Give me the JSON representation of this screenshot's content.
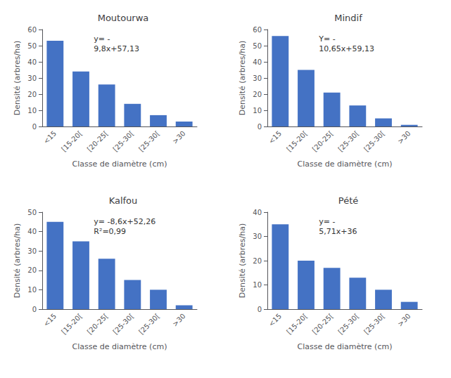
{
  "chart_data": [
    {
      "type": "bar",
      "title": "Moutourwa",
      "categories": [
        "<15",
        "[15-20[",
        "[20-25[",
        "[25-30[",
        "[25-30[",
        ">30"
      ],
      "values": [
        53,
        34,
        26,
        14,
        7,
        3
      ],
      "color": "#4472C4",
      "xlabel": "Classe de diamètre (cm)",
      "ylabel": "Densité (arbres/ha)",
      "ylim": [
        0,
        60
      ],
      "yticks": [
        0,
        10,
        20,
        30,
        40,
        50,
        60
      ],
      "grid": false,
      "annotations": [
        "y= -\n9,8x+57,13"
      ]
    },
    {
      "type": "bar",
      "title": "Mindif",
      "categories": [
        "<15",
        "[15-20[",
        "[20-25[",
        "[25-30[",
        "[25-30[",
        ">30"
      ],
      "values": [
        56,
        35,
        21,
        13,
        5,
        1
      ],
      "color": "#4472C4",
      "xlabel": "Classe de diamètre (cm)",
      "ylabel": "Densité (arbres/ha)",
      "ylim": [
        0,
        60
      ],
      "yticks": [
        0,
        10,
        20,
        30,
        40,
        50,
        60
      ],
      "grid": false,
      "annotations": [
        "Y= -\n10,65x+59,13"
      ]
    },
    {
      "type": "bar",
      "title": "Kalfou",
      "categories": [
        "<15",
        "[15-20[",
        "[20-25[",
        "[25-30[",
        "[25-30[",
        ">30"
      ],
      "values": [
        45,
        35,
        26,
        15,
        10,
        2
      ],
      "color": "#4472C4",
      "xlabel": "Classe de diamètre (cm)",
      "ylabel": "Densité (arbres/ha)",
      "ylim": [
        0,
        50
      ],
      "yticks": [
        0,
        10,
        20,
        30,
        40,
        50
      ],
      "grid": false,
      "annotations": [
        "y= -8,6x+52,26\nR²=0,99"
      ]
    },
    {
      "type": "bar",
      "title": "Pété",
      "categories": [
        "<15",
        "[15-20[",
        "[20-25[",
        "[25-30[",
        "[25-30[",
        ">30"
      ],
      "values": [
        35,
        20,
        17,
        13,
        8,
        3
      ],
      "color": "#4472C4",
      "xlabel": "Classe de diamètre (cm)",
      "ylabel": "Densité (arbres/ha)",
      "ylim": [
        0,
        40
      ],
      "yticks": [
        0,
        10,
        20,
        30,
        40
      ],
      "grid": false,
      "annotations": [
        "y= -\n5,71x+36"
      ]
    }
  ]
}
